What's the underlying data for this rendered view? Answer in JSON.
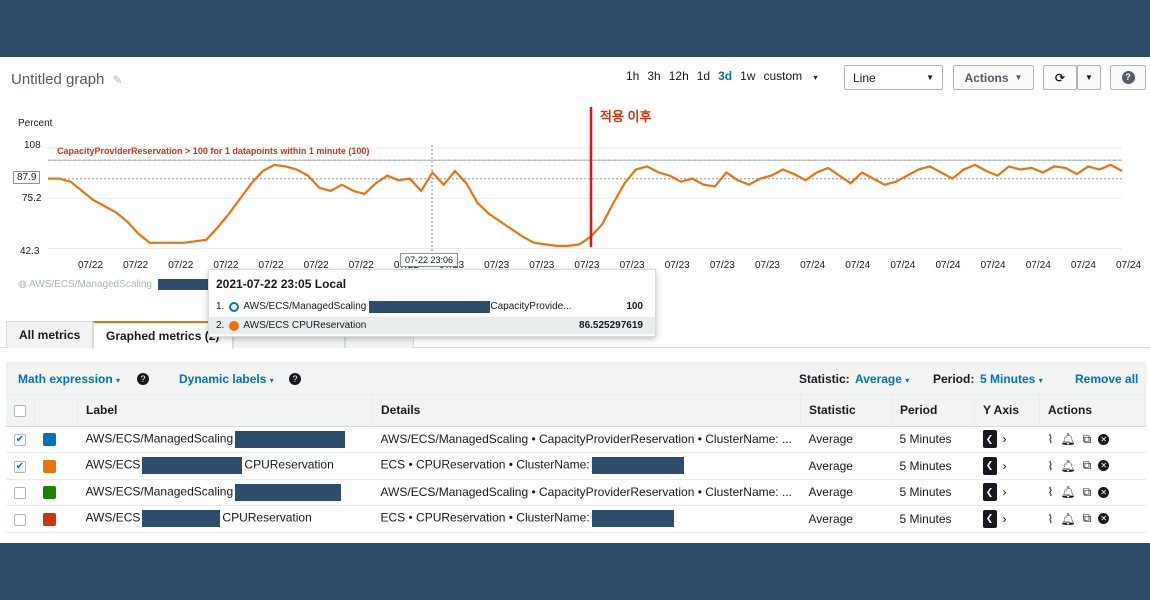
{
  "graph": {
    "title": "Untitled graph",
    "ranges": [
      "1h",
      "3h",
      "12h",
      "1d",
      "3d",
      "1w",
      "custom"
    ],
    "active_range": "3d",
    "chart_type_selected": "Line",
    "actions_label": "Actions"
  },
  "chart_data": {
    "type": "line",
    "ylabel": "Percent",
    "y_ticks": [
      "108",
      "75.2",
      "42.3"
    ],
    "y_highlight": "87.9",
    "x_ticks": [
      "07/22",
      "07/22",
      "07/22",
      "07/22",
      "07/22",
      "07/22",
      "07/22",
      "07/22",
      "07/23",
      "07/23",
      "07/23",
      "07/23",
      "07/23",
      "07/23",
      "07/23",
      "07/23",
      "07/24",
      "07/24",
      "07/24",
      "07/24",
      "07/24",
      "07/24",
      "07/24",
      "07/24"
    ],
    "x_hover_label": "07-22 23:06",
    "threshold_annotation": "CapacityProviderReservation > 100 for 1 datapoints within 1 minute (100)",
    "threshold_value": 100,
    "vertical_annotation": "적용 이후",
    "ylim": [
      40,
      110
    ],
    "series": [
      {
        "name": "AWS/ECS CPUReservation",
        "color": "#ec7211",
        "values": [
          88,
          88,
          86,
          80,
          74,
          70,
          66,
          60,
          52,
          46,
          46,
          46,
          46,
          47,
          48,
          56,
          65,
          75,
          85,
          93,
          97,
          96,
          94,
          90,
          82,
          80,
          84,
          80,
          78,
          85,
          90,
          87,
          88,
          80,
          92,
          84,
          93,
          85,
          72,
          65,
          60,
          55,
          50,
          46,
          45,
          44,
          44,
          45,
          50,
          58,
          72,
          85,
          94,
          96,
          92,
          90,
          86,
          88,
          84,
          83,
          92,
          87,
          84,
          88,
          90,
          94,
          91,
          87,
          92,
          95,
          90,
          85,
          92,
          88,
          84,
          86,
          90,
          94,
          96,
          92,
          88,
          94,
          97,
          93,
          90,
          96,
          94,
          95,
          92,
          96,
          95,
          91,
          96,
          94,
          97,
          93
        ]
      },
      {
        "name": "AWS/ECS/ManagedScaling",
        "color": "#a9c4e0",
        "values": [
          100,
          100,
          100,
          100,
          100,
          100,
          100,
          100,
          100,
          100,
          100,
          100,
          100,
          100,
          100,
          100,
          100,
          100,
          100,
          100,
          100,
          100,
          100,
          100,
          100,
          100,
          100,
          100,
          100,
          100,
          100,
          100,
          100,
          100,
          100,
          100,
          100,
          100,
          100,
          100,
          100,
          100,
          100,
          100,
          100,
          100,
          100,
          100,
          100,
          100,
          100,
          100,
          100,
          100,
          100,
          100,
          100,
          100,
          100,
          100,
          100,
          100,
          100,
          100,
          100,
          100,
          100,
          100,
          100,
          100,
          100,
          100,
          100,
          100,
          100,
          100,
          100,
          100,
          100,
          100,
          100,
          100,
          100,
          100,
          100,
          100,
          100,
          100,
          100,
          100,
          100,
          100,
          100,
          100,
          100,
          100
        ]
      }
    ]
  },
  "tooltip": {
    "title": "2021-07-22 23:05 Local",
    "row1_index": "1.",
    "row1_label": "AWS/ECS/ManagedScaling",
    "row1_suffix": "CapacityProvide...",
    "row1_value": "100",
    "row2_index": "2.",
    "row2_label": "AWS/ECS CPUReservation",
    "row2_value": "86.525297619"
  },
  "legend_partial": "AWS/ECS/ManagedScaling",
  "tabs": {
    "all": "All metrics",
    "graphed": "Graphed metrics (2)"
  },
  "controls": {
    "math": "Math expression",
    "dynamic": "Dynamic labels",
    "statistic_label": "Statistic:",
    "statistic_value": "Average",
    "period_label": "Period:",
    "period_value": "5 Minutes",
    "remove_all": "Remove all"
  },
  "table": {
    "headers": [
      "Label",
      "Details",
      "Statistic",
      "Period",
      "Y Axis",
      "Actions"
    ],
    "rows": [
      {
        "color": "#0073bb",
        "checked": true,
        "label_pre": "AWS/ECS/ManagedScaling",
        "label_post": "",
        "details_pre": "AWS/ECS/ManagedScaling • CapacityProviderReservation • ClusterName: ...",
        "statistic": "Average",
        "period": "5 Minutes"
      },
      {
        "color": "#ec7211",
        "checked": true,
        "label_pre": "AWS/ECS",
        "label_post": "CPUReservation",
        "details_pre": "ECS • CPUReservation • ClusterName:",
        "statistic": "Average",
        "period": "5 Minutes"
      },
      {
        "color": "#1d8102",
        "checked": false,
        "label_pre": "AWS/ECS/ManagedScaling",
        "label_post": "",
        "details_pre": "AWS/ECS/ManagedScaling • CapacityProviderReservation • ClusterName: ...",
        "statistic": "Average",
        "period": "5 Minutes"
      },
      {
        "color": "#d13212",
        "checked": false,
        "label_pre": "AWS/ECS",
        "label_post": "CPUReservation",
        "details_pre": "ECS • CPUReservation • ClusterName:",
        "statistic": "Average",
        "period": "5 Minutes"
      }
    ]
  }
}
